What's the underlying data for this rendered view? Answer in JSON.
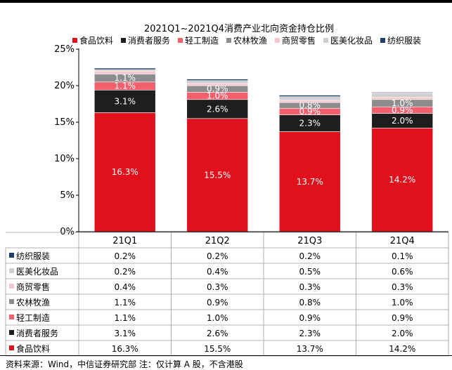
{
  "chart_data": {
    "type": "bar",
    "stacked": true,
    "title": "2021Q1~2021Q4消费产业北向资金持仓比例",
    "categories": [
      "21Q1",
      "21Q2",
      "21Q3",
      "21Q4"
    ],
    "ylim": [
      0,
      25
    ],
    "y_ticks": [
      "0%",
      "5%",
      "10%",
      "15%",
      "20%",
      "25%"
    ],
    "legend_position": "top",
    "series": [
      {
        "name": "食品饮料",
        "color": "#e0101c",
        "values": [
          16.3,
          15.5,
          13.7,
          14.2
        ],
        "labels": [
          "16.3%",
          "15.5%",
          "13.7%",
          "14.2%"
        ]
      },
      {
        "name": "消费者服务",
        "color": "#1e1e1e",
        "values": [
          3.1,
          2.6,
          2.3,
          2.0
        ],
        "labels": [
          "3.1%",
          "2.6%",
          "2.3%",
          "2.0%"
        ]
      },
      {
        "name": "轻工制造",
        "color": "#f2606e",
        "values": [
          1.1,
          1.0,
          0.9,
          0.9
        ],
        "labels": [
          "1.1%",
          "1.0%",
          "0.9%",
          "0.9%"
        ]
      },
      {
        "name": "农林牧渔",
        "color": "#8c8c8c",
        "values": [
          1.1,
          0.9,
          0.8,
          1.0
        ],
        "labels": [
          "1.1%",
          "0.9%",
          "0.8%",
          "1.0%"
        ]
      },
      {
        "name": "商贸零售",
        "color": "#f7c6cc",
        "values": [
          0.4,
          0.3,
          0.3,
          0.3
        ],
        "labels": [
          "0.4%",
          "0.3%",
          "0.3%",
          "0.3%"
        ]
      },
      {
        "name": "医美化妆品",
        "color": "#cfcfcf",
        "values": [
          0.2,
          0.4,
          0.5,
          0.6
        ],
        "labels": [
          "0.2%",
          "0.4%",
          "0.5%",
          "0.6%"
        ]
      },
      {
        "name": "纺织服装",
        "color": "#1f3f6b",
        "values": [
          0.2,
          0.2,
          0.2,
          0.1
        ],
        "labels": [
          "0.2%",
          "0.2%",
          "0.2%",
          "0.1%"
        ]
      }
    ],
    "data_labels_shown_for": [
      "食品饮料",
      "消费者服务",
      "轻工制造",
      "农林牧渔"
    ],
    "table_row_order": [
      "纺织服装",
      "医美化妆品",
      "商贸零售",
      "农林牧渔",
      "轻工制造",
      "消费者服务",
      "食品饮料"
    ]
  },
  "footer": {
    "source": "资料来源：Wind，中信证券研究部 注：仅计算 A 股，不含港股"
  }
}
